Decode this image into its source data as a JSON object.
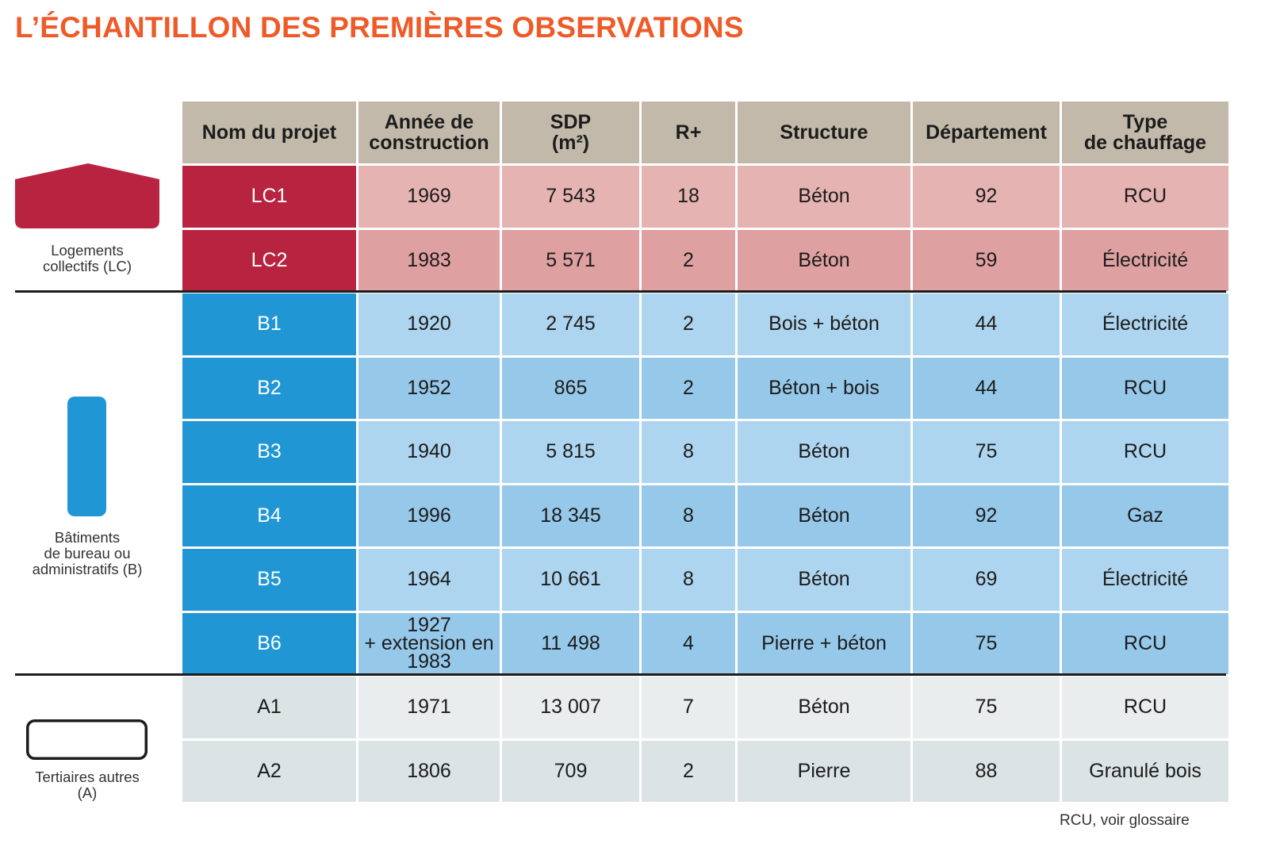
{
  "title": "L’ÉCHANTILLON DES PREMIÈRES OBSERVATIONS",
  "colors": {
    "title": "#ee5a28",
    "header_bg": "#c2b9aa",
    "lc_dark": "#b82340",
    "lc_light": "#e6b3b3",
    "b_dark": "#2196d4",
    "b_light": "#aed5ef",
    "a_light": "#e9edee"
  },
  "headers": {
    "name": "Nom du projet",
    "year": [
      "Année de",
      "construction"
    ],
    "sdp": [
      "SDP",
      "(m²)"
    ],
    "floors": "R+",
    "structure": "Structure",
    "department": "Département",
    "heating": [
      "Type",
      "de chauffage"
    ]
  },
  "categories": {
    "lc": {
      "label": [
        "Logements",
        "collectifs (LC)"
      ],
      "icon": "house-icon"
    },
    "b": {
      "label": [
        "Bâtiments",
        "de bureau ou",
        "administratifs (B)"
      ],
      "icon": "office-building-icon"
    },
    "a": {
      "label": [
        "Tertiaires autres",
        "(A)"
      ],
      "icon": "tertiary-building-icon"
    }
  },
  "rows": [
    {
      "name": "LC1",
      "year": "1969",
      "sdp": "7 543",
      "floors": "18",
      "structure": "Béton",
      "department": "92",
      "heating": "RCU"
    },
    {
      "name": "LC2",
      "year": "1983",
      "sdp": "5 571",
      "floors": "2",
      "structure": "Béton",
      "department": "59",
      "heating": "Électricité"
    },
    {
      "name": "B1",
      "year": "1920",
      "sdp": "2 745",
      "floors": "2",
      "structure": "Bois + béton",
      "department": "44",
      "heating": "Électricité"
    },
    {
      "name": "B2",
      "year": "1952",
      "sdp": "865",
      "floors": "2",
      "structure": "Béton + bois",
      "department": "44",
      "heating": "RCU"
    },
    {
      "name": "B3",
      "year": "1940",
      "sdp": "5 815",
      "floors": "8",
      "structure": "Béton",
      "department": "75",
      "heating": "RCU"
    },
    {
      "name": "B4",
      "year": "1996",
      "sdp": "18 345",
      "floors": "8",
      "structure": "Béton",
      "department": "92",
      "heating": "Gaz"
    },
    {
      "name": "B5",
      "year": "1964",
      "sdp": "10 661",
      "floors": "8",
      "structure": "Béton",
      "department": "69",
      "heating": "Électricité"
    },
    {
      "name": "B6",
      "year": [
        "1927",
        "+ extension en",
        "1983"
      ],
      "sdp": "11 498",
      "floors": "4",
      "structure": "Pierre + béton",
      "department": "75",
      "heating": "RCU"
    },
    {
      "name": "A1",
      "year": "1971",
      "sdp": "13 007",
      "floors": "7",
      "structure": "Béton",
      "department": "75",
      "heating": "RCU"
    },
    {
      "name": "A2",
      "year": "1806",
      "sdp": "709",
      "floors": "2",
      "structure": "Pierre",
      "department": "88",
      "heating": "Granulé bois"
    }
  ],
  "footnote": "RCU, voir glossaire"
}
